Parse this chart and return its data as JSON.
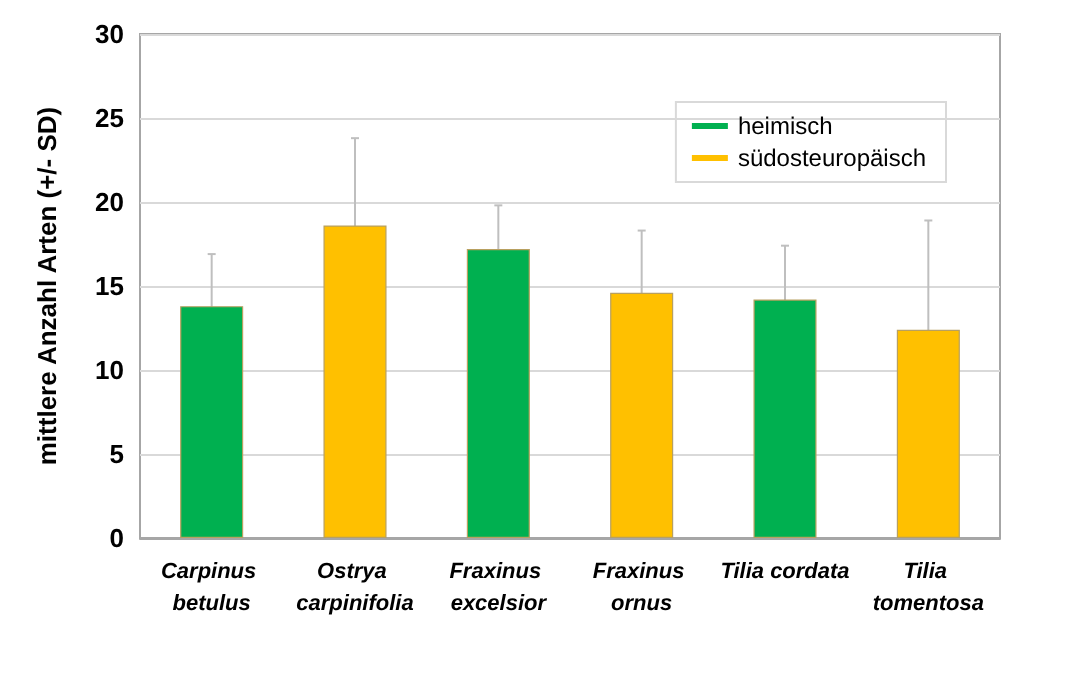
{
  "chart_data": {
    "type": "bar",
    "ylabel": "mittlere Anzahl Arten (+/- SD)",
    "categories": [
      "Carpinus betulus",
      "Ostrya carpinifolia",
      "Fraxinus excelsior",
      "Fraxinus ornus",
      "Tilia cordata",
      "Tilia tomentosa"
    ],
    "series": [
      {
        "name": "heimisch",
        "color": "#00b050",
        "values": [
          13.8,
          null,
          17.2,
          null,
          14.2,
          null
        ],
        "errors": [
          3.1,
          null,
          2.6,
          null,
          3.2,
          null
        ]
      },
      {
        "name": "südosteuropäisch",
        "color": "#ffc000",
        "values": [
          null,
          18.6,
          null,
          14.6,
          null,
          12.4
        ],
        "errors": [
          null,
          5.2,
          null,
          3.7,
          null,
          6.5
        ]
      }
    ],
    "ylim": [
      0,
      30
    ],
    "yticks": [
      0,
      5,
      10,
      15,
      20,
      25,
      30
    ],
    "grid": "y",
    "legend": "top right"
  }
}
